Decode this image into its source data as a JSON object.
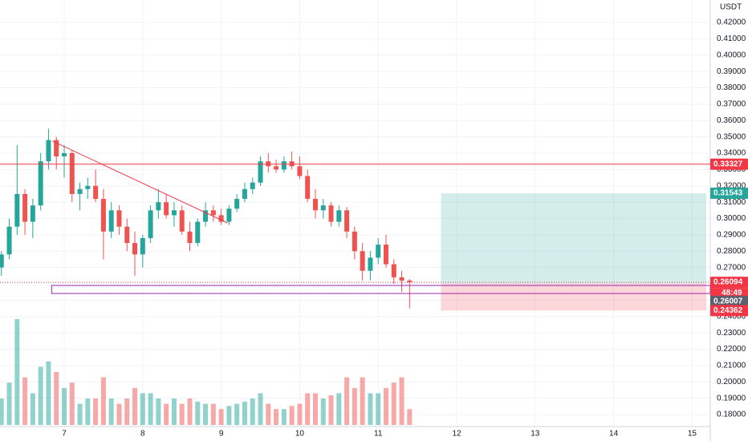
{
  "chart_data": {
    "type": "candlestick",
    "currency": "USDT",
    "x": [
      6.2,
      6.3,
      6.4,
      6.5,
      6.6,
      6.7,
      6.8,
      6.9,
      7,
      7.1,
      7.2,
      7.3,
      7.4,
      7.5,
      7.6,
      7.7,
      7.8,
      7.9,
      8,
      8.1,
      8.2,
      8.3,
      8.4,
      8.5,
      8.6,
      8.7,
      8.8,
      8.9,
      9,
      9.1,
      9.2,
      9.3,
      9.4,
      9.5,
      9.6,
      9.7,
      9.8,
      9.9,
      10,
      10.1,
      10.2,
      10.3,
      10.4,
      10.5,
      10.6,
      10.7,
      10.8,
      10.9,
      11,
      11.1,
      11.2,
      11.3,
      11.4
    ],
    "open": [
      0.27,
      0.278,
      0.295,
      0.315,
      0.298,
      0.308,
      0.335,
      0.348,
      0.338,
      0.34,
      0.315,
      0.318,
      0.32,
      0.312,
      0.292,
      0.305,
      0.295,
      0.285,
      0.278,
      0.288,
      0.305,
      0.31,
      0.302,
      0.305,
      0.292,
      0.285,
      0.298,
      0.305,
      0.302,
      0.298,
      0.306,
      0.312,
      0.318,
      0.322,
      0.335,
      0.332,
      0.33,
      0.335,
      0.332,
      0.326,
      0.312,
      0.305,
      0.308,
      0.298,
      0.305,
      0.292,
      0.28,
      0.268,
      0.276,
      0.284,
      0.272,
      0.264,
      0.262
    ],
    "high": [
      0.28,
      0.3,
      0.345,
      0.318,
      0.312,
      0.34,
      0.355,
      0.35,
      0.345,
      0.342,
      0.322,
      0.325,
      0.33,
      0.318,
      0.31,
      0.308,
      0.3,
      0.292,
      0.29,
      0.308,
      0.318,
      0.315,
      0.31,
      0.308,
      0.298,
      0.3,
      0.31,
      0.308,
      0.306,
      0.308,
      0.315,
      0.322,
      0.325,
      0.338,
      0.34,
      0.336,
      0.338,
      0.341,
      0.338,
      0.33,
      0.318,
      0.312,
      0.31,
      0.308,
      0.307,
      0.295,
      0.285,
      0.28,
      0.288,
      0.29,
      0.275,
      0.268,
      0.263
    ],
    "low": [
      0.265,
      0.275,
      0.29,
      0.29,
      0.288,
      0.305,
      0.33,
      0.33,
      0.325,
      0.31,
      0.305,
      0.312,
      0.31,
      0.275,
      0.288,
      0.29,
      0.28,
      0.265,
      0.27,
      0.285,
      0.3,
      0.3,
      0.295,
      0.29,
      0.28,
      0.283,
      0.295,
      0.298,
      0.296,
      0.296,
      0.304,
      0.31,
      0.315,
      0.32,
      0.328,
      0.328,
      0.328,
      0.33,
      0.324,
      0.31,
      0.3,
      0.3,
      0.295,
      0.295,
      0.288,
      0.275,
      0.262,
      0.262,
      0.272,
      0.27,
      0.26,
      0.255,
      0.245
    ],
    "close": [
      0.278,
      0.295,
      0.315,
      0.298,
      0.308,
      0.335,
      0.348,
      0.338,
      0.34,
      0.315,
      0.318,
      0.32,
      0.312,
      0.292,
      0.305,
      0.295,
      0.285,
      0.278,
      0.288,
      0.305,
      0.31,
      0.302,
      0.305,
      0.292,
      0.285,
      0.298,
      0.305,
      0.302,
      0.298,
      0.306,
      0.312,
      0.318,
      0.322,
      0.335,
      0.332,
      0.33,
      0.335,
      0.332,
      0.326,
      0.312,
      0.305,
      0.308,
      0.298,
      0.305,
      0.292,
      0.28,
      0.268,
      0.276,
      0.284,
      0.272,
      0.264,
      0.262,
      0.261
    ],
    "volume": [
      25,
      40,
      100,
      45,
      30,
      55,
      60,
      50,
      35,
      40,
      20,
      25,
      25,
      45,
      25,
      20,
      25,
      35,
      30,
      30,
      25,
      20,
      25,
      20,
      25,
      22,
      20,
      20,
      15,
      18,
      20,
      22,
      25,
      30,
      20,
      15,
      15,
      18,
      20,
      30,
      30,
      25,
      28,
      30,
      45,
      35,
      45,
      30,
      30,
      35,
      40,
      45,
      15
    ],
    "up_color": "#26a69a",
    "down_color": "#ef5350",
    "xlim": [
      6.182,
      15.231
    ],
    "xticks": [
      7,
      8,
      9,
      10,
      11,
      12,
      13,
      14,
      15
    ],
    "ylim": [
      0.17264,
      0.43374
    ],
    "yticks": [
      {
        "value": 0.18,
        "label": "0.18000"
      },
      {
        "value": 0.19,
        "label": "0.19000"
      },
      {
        "value": 0.2,
        "label": "0.20000"
      },
      {
        "value": 0.21,
        "label": "0.21000"
      },
      {
        "value": 0.22,
        "label": "0.22000"
      },
      {
        "value": 0.23,
        "label": "0.23000"
      },
      {
        "value": 0.24,
        "label": "0.24000"
      },
      {
        "value": 0.25,
        "label": "0.25000"
      },
      {
        "value": 0.26,
        "label": "0.26000"
      },
      {
        "value": 0.27,
        "label": "0.27000"
      },
      {
        "value": 0.28,
        "label": "0.28000"
      },
      {
        "value": 0.29,
        "label": "0.29000"
      },
      {
        "value": 0.3,
        "label": "0.30000"
      },
      {
        "value": 0.31,
        "label": "0.31000"
      },
      {
        "value": 0.32,
        "label": "0.32000"
      },
      {
        "value": 0.33,
        "label": "0.33000"
      },
      {
        "value": 0.34,
        "label": "0.34000"
      },
      {
        "value": 0.35,
        "label": "0.35000"
      },
      {
        "value": 0.36,
        "label": "0.36000"
      },
      {
        "value": 0.37,
        "label": "0.37000"
      },
      {
        "value": 0.38,
        "label": "0.38000"
      },
      {
        "value": 0.39,
        "label": "0.39000"
      },
      {
        "value": 0.4,
        "label": "0.40000"
      },
      {
        "value": 0.41,
        "label": "0.41000"
      },
      {
        "value": 0.42,
        "label": "0.42000"
      }
    ],
    "grid": true,
    "horizontal_line": {
      "value": 0.33327,
      "color": "#f23645"
    },
    "trend_line": {
      "x": [
        6.85,
        9.08
      ],
      "y": [
        0.3474,
        0.2973
      ],
      "color": "#f23645"
    },
    "zone": {
      "x_start": 6.84,
      "top": 0.259,
      "bottom": 0.2541,
      "color": "#9c27b0"
    },
    "position": {
      "x_start": 11.8,
      "x_end": 15.18,
      "entry": 0.26007,
      "target": 0.31543,
      "stop": 0.24362,
      "target_color": "#26a69a",
      "stop_color": "#f23645",
      "entry_color": "#5d606b"
    },
    "last_price": {
      "value": 0.26094,
      "countdown": "48:49",
      "color": "#f23645"
    }
  }
}
